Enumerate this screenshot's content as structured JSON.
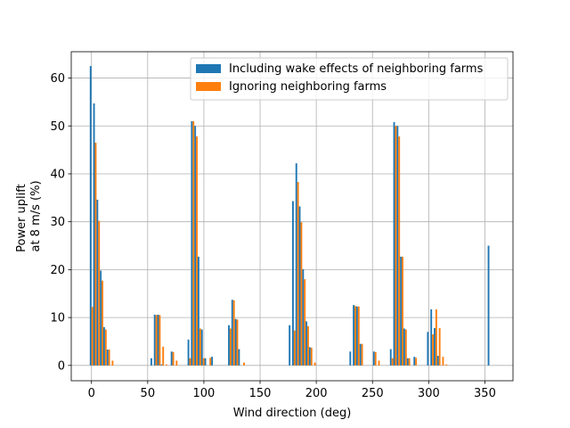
{
  "chart_data": {
    "type": "bar",
    "xlabel": "Wind direction (deg)",
    "ylabel_lines": [
      "Power uplift",
      "at 8 m/s (%)"
    ],
    "xlim": [
      -18,
      375
    ],
    "ylim": [
      -3.2,
      65.5
    ],
    "xticks": [
      0,
      50,
      100,
      150,
      200,
      250,
      300,
      350
    ],
    "yticks": [
      0,
      10,
      20,
      30,
      40,
      50,
      60
    ],
    "grid": true,
    "legend_position": "top-right",
    "series": [
      {
        "name": "Including wake effects of neighboring farms",
        "color": "#1f77b4",
        "points": [
          [
            0,
            62.5
          ],
          [
            3,
            54.7
          ],
          [
            6,
            34.6
          ],
          [
            9,
            19.8
          ],
          [
            12,
            8.0
          ],
          [
            15,
            3.3
          ],
          [
            54,
            1.5
          ],
          [
            57,
            10.6
          ],
          [
            60,
            10.6
          ],
          [
            63,
            0.2
          ],
          [
            72,
            2.9
          ],
          [
            87,
            5.4
          ],
          [
            90,
            51.0
          ],
          [
            93,
            50.0
          ],
          [
            96,
            22.7
          ],
          [
            99,
            7.5
          ],
          [
            102,
            1.5
          ],
          [
            108,
            1.8
          ],
          [
            123,
            8.4
          ],
          [
            126,
            13.7
          ],
          [
            129,
            9.7
          ],
          [
            132,
            3.4
          ],
          [
            177,
            8.4
          ],
          [
            180,
            34.3
          ],
          [
            183,
            42.2
          ],
          [
            186,
            33.2
          ],
          [
            189,
            20.1
          ],
          [
            192,
            9.2
          ],
          [
            195,
            3.8
          ],
          [
            231,
            2.9
          ],
          [
            234,
            12.6
          ],
          [
            237,
            12.3
          ],
          [
            240,
            4.5
          ],
          [
            252,
            2.9
          ],
          [
            267,
            3.4
          ],
          [
            270,
            50.8
          ],
          [
            273,
            50.0
          ],
          [
            276,
            22.7
          ],
          [
            279,
            7.7
          ],
          [
            282,
            1.5
          ],
          [
            288,
            1.8
          ],
          [
            300,
            7.0
          ],
          [
            303,
            11.7
          ],
          [
            306,
            7.8
          ],
          [
            309,
            2.0
          ],
          [
            354,
            25.0
          ]
        ]
      },
      {
        "name": "Ignoring neighboring farms",
        "color": "#ff7f0e",
        "points": [
          [
            0,
            12.2
          ],
          [
            3,
            46.5
          ],
          [
            6,
            30.2
          ],
          [
            9,
            17.7
          ],
          [
            12,
            7.5
          ],
          [
            15,
            3.3
          ],
          [
            18,
            1.0
          ],
          [
            57,
            10.5
          ],
          [
            60,
            10.5
          ],
          [
            63,
            3.9
          ],
          [
            66,
            0.2
          ],
          [
            72,
            2.8
          ],
          [
            75,
            1.0
          ],
          [
            87,
            1.5
          ],
          [
            90,
            51.0
          ],
          [
            93,
            47.8
          ],
          [
            96,
            7.7
          ],
          [
            99,
            1.5
          ],
          [
            105,
            1.6
          ],
          [
            123,
            7.7
          ],
          [
            126,
            13.6
          ],
          [
            129,
            9.6
          ],
          [
            135,
            0.6
          ],
          [
            180,
            7.3
          ],
          [
            183,
            38.3
          ],
          [
            186,
            29.9
          ],
          [
            189,
            18.0
          ],
          [
            192,
            8.2
          ],
          [
            195,
            3.7
          ],
          [
            198,
            0.6
          ],
          [
            234,
            12.4
          ],
          [
            237,
            12.3
          ],
          [
            240,
            4.5
          ],
          [
            252,
            2.8
          ],
          [
            255,
            1.0
          ],
          [
            267,
            1.5
          ],
          [
            270,
            50.0
          ],
          [
            273,
            47.8
          ],
          [
            276,
            22.7
          ],
          [
            279,
            7.5
          ],
          [
            282,
            1.5
          ],
          [
            288,
            1.6
          ],
          [
            303,
            6.5
          ],
          [
            306,
            11.7
          ],
          [
            309,
            7.8
          ],
          [
            312,
            1.8
          ],
          [
            315,
            0.2
          ]
        ]
      }
    ]
  }
}
